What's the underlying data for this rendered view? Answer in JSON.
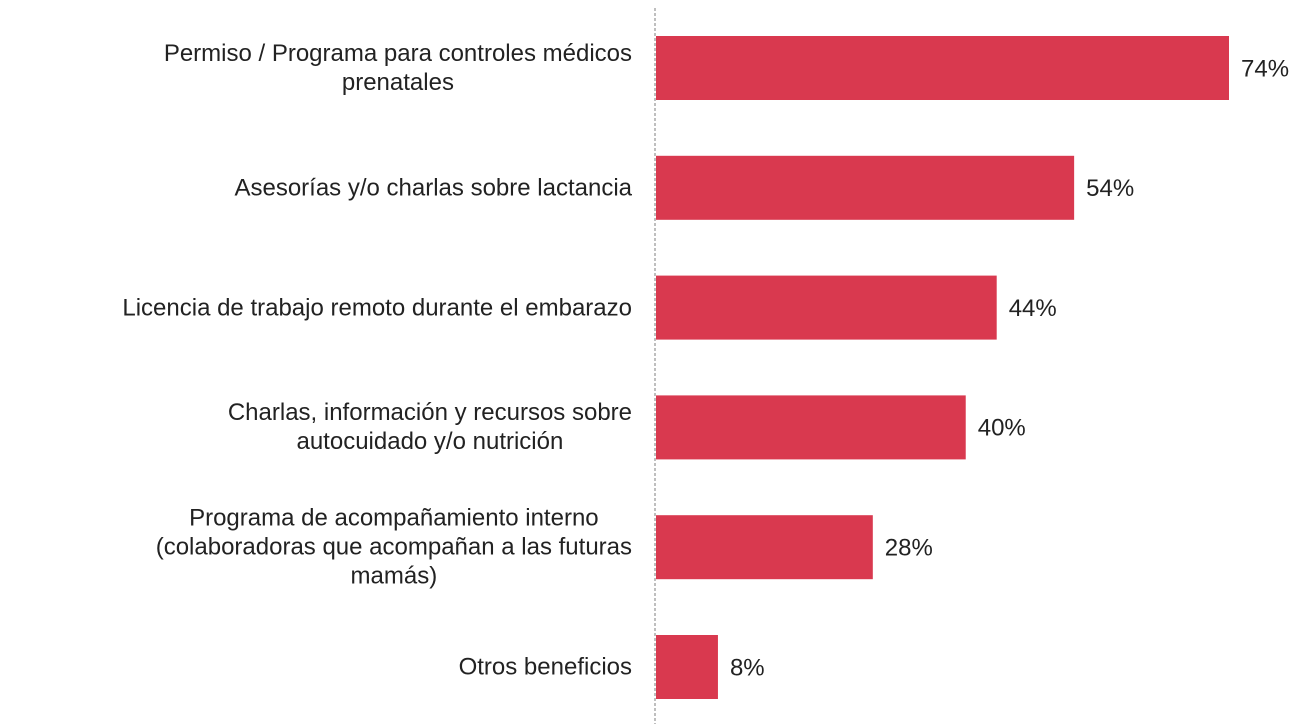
{
  "chart_data": {
    "type": "bar",
    "orientation": "horizontal",
    "categories": [
      "Permiso / Programa para controles médicos\nprenatales",
      "Asesorías y/o charlas sobre lactancia",
      "Licencia de trabajo remoto durante el embarazo",
      "Charlas, información y recursos sobre\nautocuidado y/o nutrición",
      "Programa de acompañamiento interno\n(colaboradoras que acompañan a las futuras\nmamás)",
      "Otros beneficios"
    ],
    "values": [
      74,
      54,
      44,
      40,
      28,
      8
    ],
    "value_labels": [
      "74%",
      "54%",
      "44%",
      "40%",
      "28%",
      "8%"
    ],
    "color": "#d9394f"
  }
}
